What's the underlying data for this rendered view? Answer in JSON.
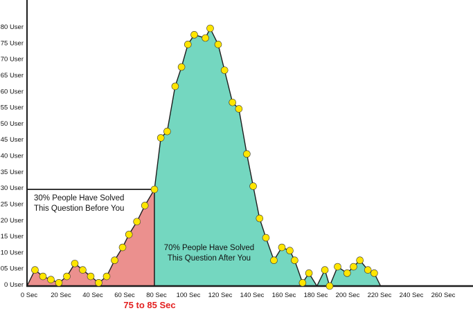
{
  "chart_data": {
    "type": "area",
    "title": "",
    "xlabel": "Sec",
    "ylabel": "User",
    "xlim": [
      0,
      280
    ],
    "ylim": [
      0,
      88
    ],
    "grid": false,
    "legend": false,
    "x_ticks": [
      {
        "sec": 0,
        "label": "0 Sec"
      },
      {
        "sec": 20,
        "label": "20 Sec"
      },
      {
        "sec": 40,
        "label": "40 Sec"
      },
      {
        "sec": 60,
        "label": "60 Sec"
      },
      {
        "sec": 80,
        "label": "80 Sec"
      },
      {
        "sec": 100,
        "label": "100 Sec"
      },
      {
        "sec": 120,
        "label": "120 Sec"
      },
      {
        "sec": 140,
        "label": "140 Sec"
      },
      {
        "sec": 160,
        "label": "160 Sec"
      },
      {
        "sec": 180,
        "label": "180 Sec"
      },
      {
        "sec": 200,
        "label": "200 Sec"
      },
      {
        "sec": 220,
        "label": "220 Sec"
      },
      {
        "sec": 240,
        "label": "240 Sec"
      },
      {
        "sec": 260,
        "label": "260 Sec"
      }
    ],
    "y_ticks": [
      {
        "users": 0,
        "label": "0 User"
      },
      {
        "users": 5,
        "label": "05 User"
      },
      {
        "users": 10,
        "label": "10 User"
      },
      {
        "users": 15,
        "label": "15 User"
      },
      {
        "users": 20,
        "label": "20 User"
      },
      {
        "users": 25,
        "label": "25 User"
      },
      {
        "users": 30,
        "label": "30 User"
      },
      {
        "users": 35,
        "label": "35 User"
      },
      {
        "users": 40,
        "label": "40 User"
      },
      {
        "users": 45,
        "label": "45 User"
      },
      {
        "users": 50,
        "label": "50 User"
      },
      {
        "users": 55,
        "label": "55 User"
      },
      {
        "users": 60,
        "label": "60 User"
      },
      {
        "users": 65,
        "label": "65 User"
      },
      {
        "users": 70,
        "label": "70 User"
      },
      {
        "users": 75,
        "label": "75 User"
      },
      {
        "users": 80,
        "label": "80 User"
      }
    ],
    "split_sec": 80,
    "split_level_users": 30,
    "regions": {
      "before": {
        "label_line1": "30% People Have Solved",
        "label_line2": "This Question Before You",
        "fill": "#EB908E"
      },
      "after": {
        "label_line1": "70% People Have Solved",
        "label_line2": "This Question After You",
        "fill": "#74D7C0"
      }
    },
    "range_label": {
      "text": "75 to 85 Sec",
      "color": "#E32020"
    },
    "styles": {
      "dot_fill": "#FFE500",
      "dot_stroke": "#333333",
      "line_color": "#1C1C1C",
      "axis_color": "#1C1C1C",
      "text_color": "#111111"
    },
    "points": [
      [
        0,
        0,
        0
      ],
      [
        5,
        5,
        1
      ],
      [
        10,
        3,
        1
      ],
      [
        15,
        2,
        1
      ],
      [
        20,
        1,
        1
      ],
      [
        25,
        3,
        1
      ],
      [
        30,
        7,
        1
      ],
      [
        35,
        5,
        1
      ],
      [
        40,
        3,
        1
      ],
      [
        45,
        1,
        1
      ],
      [
        50,
        3,
        1
      ],
      [
        55,
        8,
        1
      ],
      [
        60,
        12,
        1
      ],
      [
        64,
        16,
        1
      ],
      [
        69,
        20,
        1
      ],
      [
        74,
        25,
        1
      ],
      [
        80,
        30,
        1
      ],
      [
        84,
        46,
        1
      ],
      [
        88,
        48,
        1
      ],
      [
        93,
        62,
        1
      ],
      [
        97,
        68,
        1
      ],
      [
        101,
        75,
        1
      ],
      [
        105,
        78,
        1
      ],
      [
        112,
        77,
        1
      ],
      [
        115,
        80,
        1
      ],
      [
        120,
        75,
        1
      ],
      [
        124,
        67,
        1
      ],
      [
        129,
        57,
        1
      ],
      [
        133,
        55,
        1
      ],
      [
        138,
        41,
        1
      ],
      [
        142,
        31,
        1
      ],
      [
        146,
        21,
        1
      ],
      [
        150,
        15,
        1
      ],
      [
        155,
        8,
        1
      ],
      [
        160,
        12,
        1
      ],
      [
        165,
        11,
        1
      ],
      [
        168,
        8,
        1
      ],
      [
        173,
        1,
        1
      ],
      [
        177,
        4,
        1
      ],
      [
        182,
        0,
        0
      ],
      [
        187,
        5,
        1
      ],
      [
        190,
        0,
        1
      ],
      [
        195,
        6,
        1
      ],
      [
        201,
        4,
        1
      ],
      [
        205,
        6,
        1
      ],
      [
        209,
        8,
        1
      ],
      [
        214,
        5,
        1
      ],
      [
        218,
        4,
        1
      ],
      [
        222,
        0,
        0
      ]
    ]
  }
}
